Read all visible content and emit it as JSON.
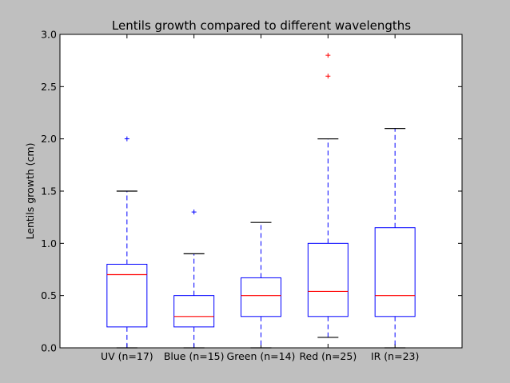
{
  "chart_data": {
    "type": "box",
    "title": "Lentils growth compared to different wavelengths",
    "xlabel": "",
    "ylabel": "Lentils growth (cm)",
    "ylim": [
      0,
      3.0
    ],
    "yticks": [
      "0.0",
      "0.5",
      "1.0",
      "1.5",
      "2.0",
      "2.5",
      "3.0"
    ],
    "grid": false,
    "colors": {
      "box": "#0000ff",
      "median": "#ff0000",
      "cap": "#000000",
      "figure_bg": "#bfbfbf",
      "axes_bg": "#ffffff"
    },
    "categories": [
      "UV (n=17)",
      "Blue (n=15)",
      "Green (n=14)",
      "Red (n=25)",
      "IR (n=23)"
    ],
    "boxes": [
      {
        "category": "UV (n=17)",
        "whisker_low": 0.0,
        "q1": 0.2,
        "median": 0.7,
        "q3": 0.8,
        "whisker_high": 1.5,
        "outliers": [
          2.0
        ]
      },
      {
        "category": "Blue (n=15)",
        "whisker_low": 0.0,
        "q1": 0.2,
        "median": 0.3,
        "q3": 0.5,
        "whisker_high": 0.9,
        "outliers": [
          1.3
        ]
      },
      {
        "category": "Green (n=14)",
        "whisker_low": 0.0,
        "q1": 0.3,
        "median": 0.5,
        "q3": 0.67,
        "whisker_high": 1.2,
        "outliers": []
      },
      {
        "category": "Red (n=25)",
        "whisker_low": 0.1,
        "q1": 0.3,
        "median": 0.54,
        "q3": 1.0,
        "whisker_high": 2.0,
        "outliers": [
          2.6,
          2.8
        ]
      },
      {
        "category": "IR (n=23)",
        "whisker_low": 0.0,
        "q1": 0.3,
        "median": 0.5,
        "q3": 1.15,
        "whisker_high": 2.1,
        "outliers": []
      }
    ]
  }
}
